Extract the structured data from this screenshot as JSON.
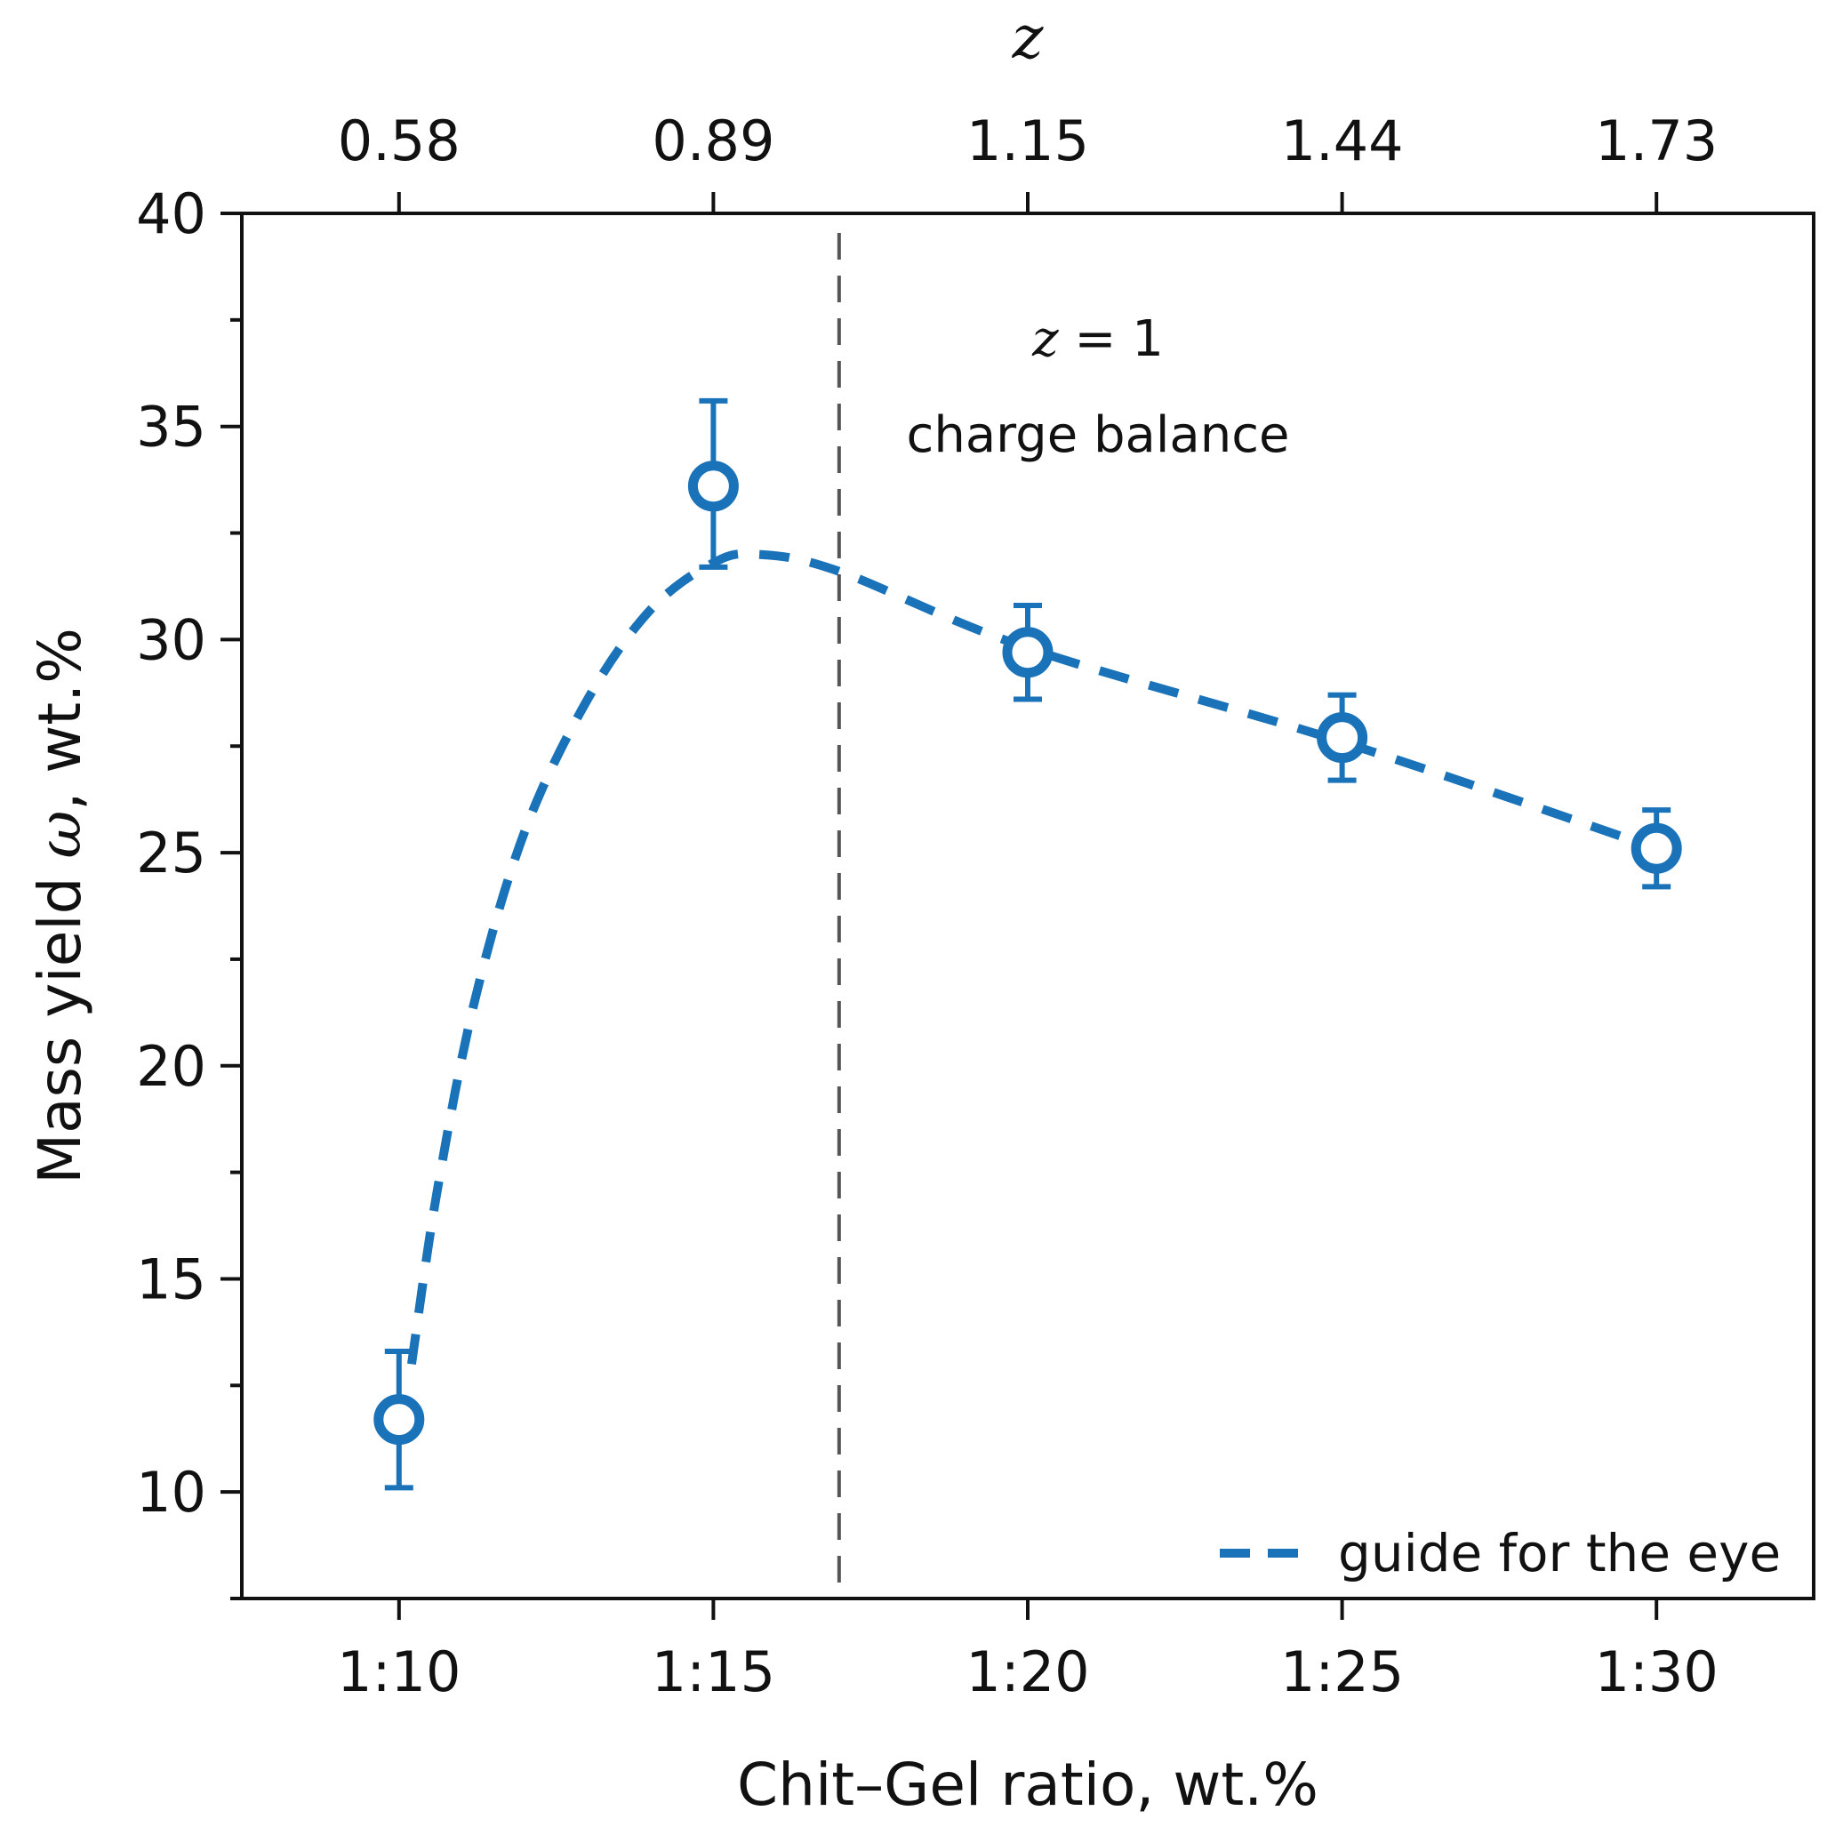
{
  "chart_data": {
    "type": "scatter",
    "title": "",
    "xlabel": "Chit–Gel ratio, wt.%",
    "ylabel_main": "Mass yield ",
    "ylabel_symbol": "ω",
    "ylabel_unit": ", wt.%",
    "top_axis_label": "z",
    "categories": [
      "1:10",
      "1:15",
      "1:20",
      "1:25",
      "1:30"
    ],
    "top_tick_labels": [
      "0.58",
      "0.89",
      "1.15",
      "1.44",
      "1.73"
    ],
    "x_values": [
      10,
      15,
      20,
      25,
      30
    ],
    "xlim": [
      7.5,
      32.5
    ],
    "ylim": [
      7.5,
      40
    ],
    "yticks_major": [
      10,
      15,
      20,
      25,
      30,
      35,
      40
    ],
    "ytick_labels": [
      "10",
      "15",
      "20",
      "25",
      "30",
      "35",
      "40"
    ],
    "yticks_minor_step": 2.5,
    "series": [
      {
        "name": "Mass yield",
        "values": [
          11.7,
          33.6,
          29.7,
          27.7,
          25.1
        ],
        "err_low": [
          1.6,
          1.9,
          1.1,
          1.0,
          0.9
        ],
        "err_high": [
          1.6,
          2.0,
          1.1,
          1.0,
          0.9
        ],
        "marker": "open-circle",
        "color": "#1a73b8"
      }
    ],
    "guide_curve": {
      "label": "guide for the eye",
      "style": "dashed",
      "color": "#1a73b8",
      "x": [
        10.2,
        10.6,
        11.2,
        12.0,
        13.0,
        14.0,
        15.0,
        15.7,
        17.0,
        20.0,
        25.0,
        30.0
      ],
      "y": [
        13.0,
        17.0,
        21.5,
        25.5,
        28.6,
        30.7,
        31.8,
        32.0,
        31.6,
        29.8,
        27.6,
        25.1
      ]
    },
    "reference_line": {
      "x": 17.0,
      "style": "dashed",
      "color": "#555555",
      "label_symbol": "z",
      "label_eq": " = 1",
      "label_text": "charge balance"
    },
    "legend": {
      "position": "bottom-right",
      "entries": [
        "guide for the eye"
      ]
    }
  }
}
